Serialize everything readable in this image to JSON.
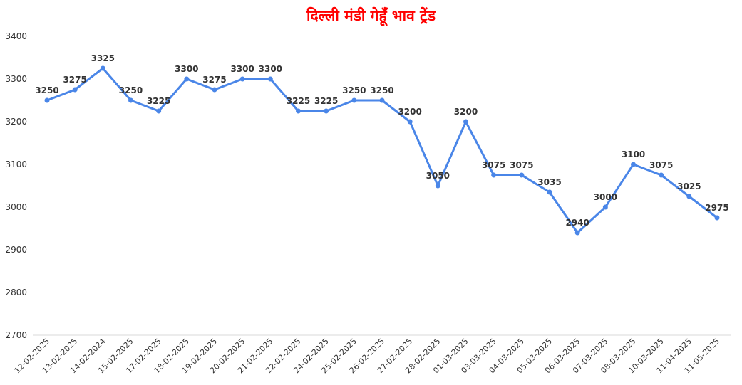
{
  "chart_data": {
    "type": "line",
    "title": "दिल्ली मंडी गेहूँ भाव ट्रेंड",
    "xlabel": "",
    "ylabel": "",
    "categories": [
      "12-02-2025",
      "13-02-2025",
      "14-02-2024",
      "15-02-2025",
      "17-02-2025",
      "18-02-2025",
      "19-02-2025",
      "20-02-2025",
      "21-02-2025",
      "22-02-2025",
      "24-02-2025",
      "25-02-2025",
      "26-02-2025",
      "27-02-2025",
      "28-02-2025",
      "01-03-2025",
      "03-03-2025",
      "04-03-2025",
      "05-03-2025",
      "06-03-2025",
      "07-03-2025",
      "08-03-2025",
      "10-03-2025",
      "11-04-2025",
      "11-05-2025"
    ],
    "values": [
      3250,
      3275,
      3325,
      3250,
      3225,
      3300,
      3275,
      3300,
      3300,
      3225,
      3225,
      3250,
      3250,
      3200,
      3050,
      3200,
      3075,
      3075,
      3035,
      2940,
      3000,
      3100,
      3075,
      3025,
      2975
    ],
    "ylim": [
      2700,
      3400
    ],
    "yticks": [
      2700,
      2800,
      2900,
      3000,
      3100,
      3200,
      3300,
      3400
    ],
    "grid": false,
    "legend": "none",
    "colors": {
      "line": "#4a86e8",
      "title": "#ff0000",
      "axis": "#d9d9d9"
    }
  }
}
